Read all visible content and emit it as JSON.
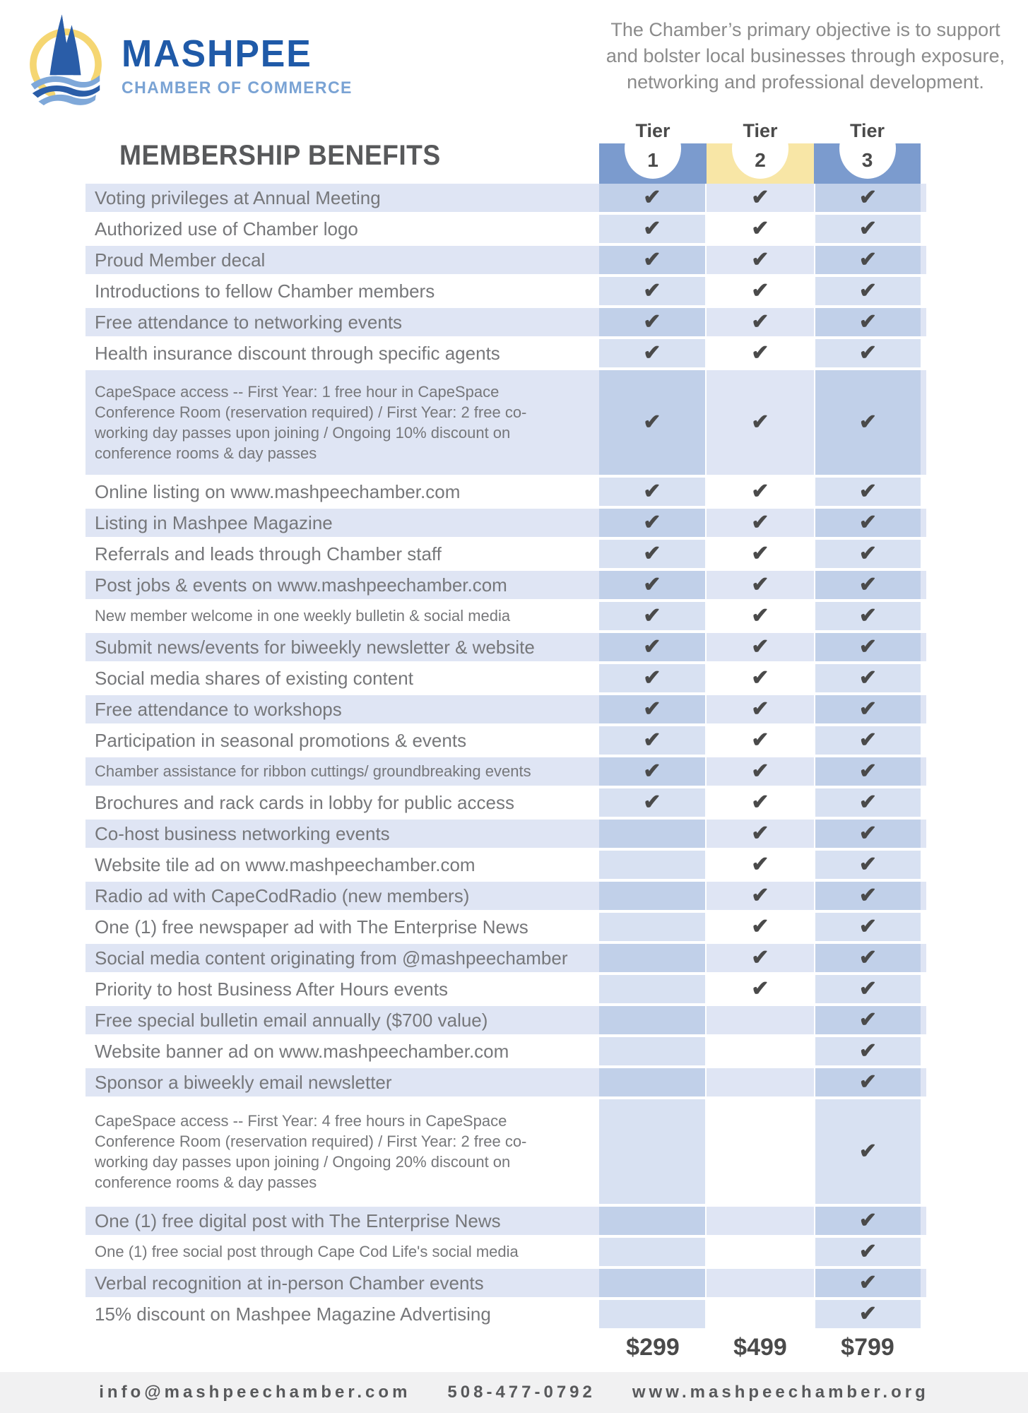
{
  "logo": {
    "brand": "MASHPEE",
    "subtitle": "CHAMBER OF COMMERCE"
  },
  "intro": "The Chamber’s primary objective is to support and bolster local businesses through exposure, networking and professional development.",
  "heading": "MEMBERSHIP BENEFITS",
  "tiers": [
    {
      "label": "Tier",
      "number": "1",
      "color": "#7b9bce"
    },
    {
      "label": "Tier",
      "number": "2",
      "color": "#f8e6a6"
    },
    {
      "label": "Tier",
      "number": "3",
      "color": "#7b9bce"
    }
  ],
  "rows": [
    {
      "label": "Voting privileges at Annual Meeting",
      "checks": [
        1,
        1,
        1
      ],
      "size": "normal",
      "tall": false
    },
    {
      "label": "Authorized use of Chamber logo",
      "checks": [
        1,
        1,
        1
      ],
      "size": "normal",
      "tall": false
    },
    {
      "label": "Proud Member decal",
      "checks": [
        1,
        1,
        1
      ],
      "size": "normal",
      "tall": false
    },
    {
      "label": "Introductions to fellow Chamber members",
      "checks": [
        1,
        1,
        1
      ],
      "size": "normal",
      "tall": false
    },
    {
      "label": "Free attendance to networking events",
      "checks": [
        1,
        1,
        1
      ],
      "size": "normal",
      "tall": false
    },
    {
      "label": "Health insurance discount through specific agents",
      "checks": [
        1,
        1,
        1
      ],
      "size": "normal",
      "tall": false
    },
    {
      "label": "CapeSpace access -- First Year: 1 free hour in CapeSpace Conference Room (reservation required) / First Year: 2 free co-working day passes upon joining / Ongoing 10% discount on conference rooms & day passes",
      "checks": [
        1,
        1,
        1
      ],
      "size": "small",
      "tall": true
    },
    {
      "label": "Online listing on www.mashpeechamber.com",
      "checks": [
        1,
        1,
        1
      ],
      "size": "normal",
      "tall": false
    },
    {
      "label": "Listing in Mashpee Magazine",
      "checks": [
        1,
        1,
        1
      ],
      "size": "normal",
      "tall": false
    },
    {
      "label": "Referrals and leads through Chamber staff",
      "checks": [
        1,
        1,
        1
      ],
      "size": "normal",
      "tall": false
    },
    {
      "label": "Post jobs & events on www.mashpeechamber.com",
      "checks": [
        1,
        1,
        1
      ],
      "size": "normal",
      "tall": false
    },
    {
      "label": "New member welcome in one weekly bulletin & social media",
      "checks": [
        1,
        1,
        1
      ],
      "size": "small",
      "tall": false
    },
    {
      "label": "Submit news/events for biweekly newsletter & website",
      "checks": [
        1,
        1,
        1
      ],
      "size": "normal",
      "tall": false
    },
    {
      "label": "Social media shares of existing content",
      "checks": [
        1,
        1,
        1
      ],
      "size": "normal",
      "tall": false
    },
    {
      "label": "Free attendance to workshops",
      "checks": [
        1,
        1,
        1
      ],
      "size": "normal",
      "tall": false
    },
    {
      "label": "Participation in seasonal promotions & events",
      "checks": [
        1,
        1,
        1
      ],
      "size": "normal",
      "tall": false
    },
    {
      "label": "Chamber assistance for ribbon cuttings/ groundbreaking events",
      "checks": [
        1,
        1,
        1
      ],
      "size": "small",
      "tall": false
    },
    {
      "label": "Brochures and rack cards in lobby for public access",
      "checks": [
        1,
        1,
        1
      ],
      "size": "normal",
      "tall": false
    },
    {
      "label": "Co-host business networking events",
      "checks": [
        0,
        1,
        1
      ],
      "size": "normal",
      "tall": false
    },
    {
      "label": "Website tile ad on www.mashpeechamber.com",
      "checks": [
        0,
        1,
        1
      ],
      "size": "normal",
      "tall": false
    },
    {
      "label": "Radio ad with CapeCodRadio (new members)",
      "checks": [
        0,
        1,
        1
      ],
      "size": "normal",
      "tall": false
    },
    {
      "label": "One (1) free newspaper ad with The Enterprise News",
      "checks": [
        0,
        1,
        1
      ],
      "size": "normal",
      "tall": false
    },
    {
      "label": "Social media content originating from @mashpeechamber",
      "checks": [
        0,
        1,
        1
      ],
      "size": "normal",
      "tall": false
    },
    {
      "label": "Priority to host Business After Hours events",
      "checks": [
        0,
        1,
        1
      ],
      "size": "normal",
      "tall": false
    },
    {
      "label": "Free special bulletin email annually ($700 value)",
      "checks": [
        0,
        0,
        1
      ],
      "size": "normal",
      "tall": false
    },
    {
      "label": "Website banner ad on www.mashpeechamber.com",
      "checks": [
        0,
        0,
        1
      ],
      "size": "normal",
      "tall": false
    },
    {
      "label": "Sponsor a biweekly email newsletter",
      "checks": [
        0,
        0,
        1
      ],
      "size": "normal",
      "tall": false
    },
    {
      "label": "CapeSpace access -- First Year: 4 free hours in CapeSpace Conference Room (reservation required) / First Year: 2 free co-working day passes upon joining / Ongoing 20% discount on conference rooms & day passes",
      "checks": [
        0,
        0,
        1
      ],
      "size": "small",
      "tall": true
    },
    {
      "label": "One (1) free digital post with The Enterprise News",
      "checks": [
        0,
        0,
        1
      ],
      "size": "normal",
      "tall": false
    },
    {
      "label": "One (1) free social post through Cape Cod Life's social media",
      "checks": [
        0,
        0,
        1
      ],
      "size": "small",
      "tall": false
    },
    {
      "label": "Verbal recognition at in-person Chamber events",
      "checks": [
        0,
        0,
        1
      ],
      "size": "normal",
      "tall": false
    },
    {
      "label": "15% discount on Mashpee Magazine Advertising",
      "checks": [
        0,
        0,
        1
      ],
      "size": "normal",
      "tall": false
    }
  ],
  "prices": [
    "$299",
    "$499",
    "$799"
  ],
  "footer": {
    "email": "info@mashpeechamber.com",
    "phone": "508-477-0792",
    "website": "www.mashpeechamber.org"
  },
  "ui": {
    "check_glyph": "✔"
  },
  "colors": {
    "tier_blue": "#7b9bce",
    "tier_yellow": "#f8e6a6",
    "tier_text": "#4a4a4a",
    "stripe": "#dfe5f4",
    "band_on_stripe": "#c1d0e9",
    "band_on_white": "#d8e1f2",
    "check": "#4a4a4a",
    "label_text": "#76777a",
    "heading_text": "#58595b",
    "intro_text": "#8b8b8b",
    "price_text": "#4a4a4a",
    "footer_bg": "#f1f1f2",
    "footer_text": "#58595b",
    "brand_blue": "#1f5aa8",
    "brand_light_blue": "#7aa3d4",
    "logo_dark_blue": "#2a5da8",
    "logo_light_blue": "#7fa8d9",
    "logo_yellow": "#f5d672"
  }
}
